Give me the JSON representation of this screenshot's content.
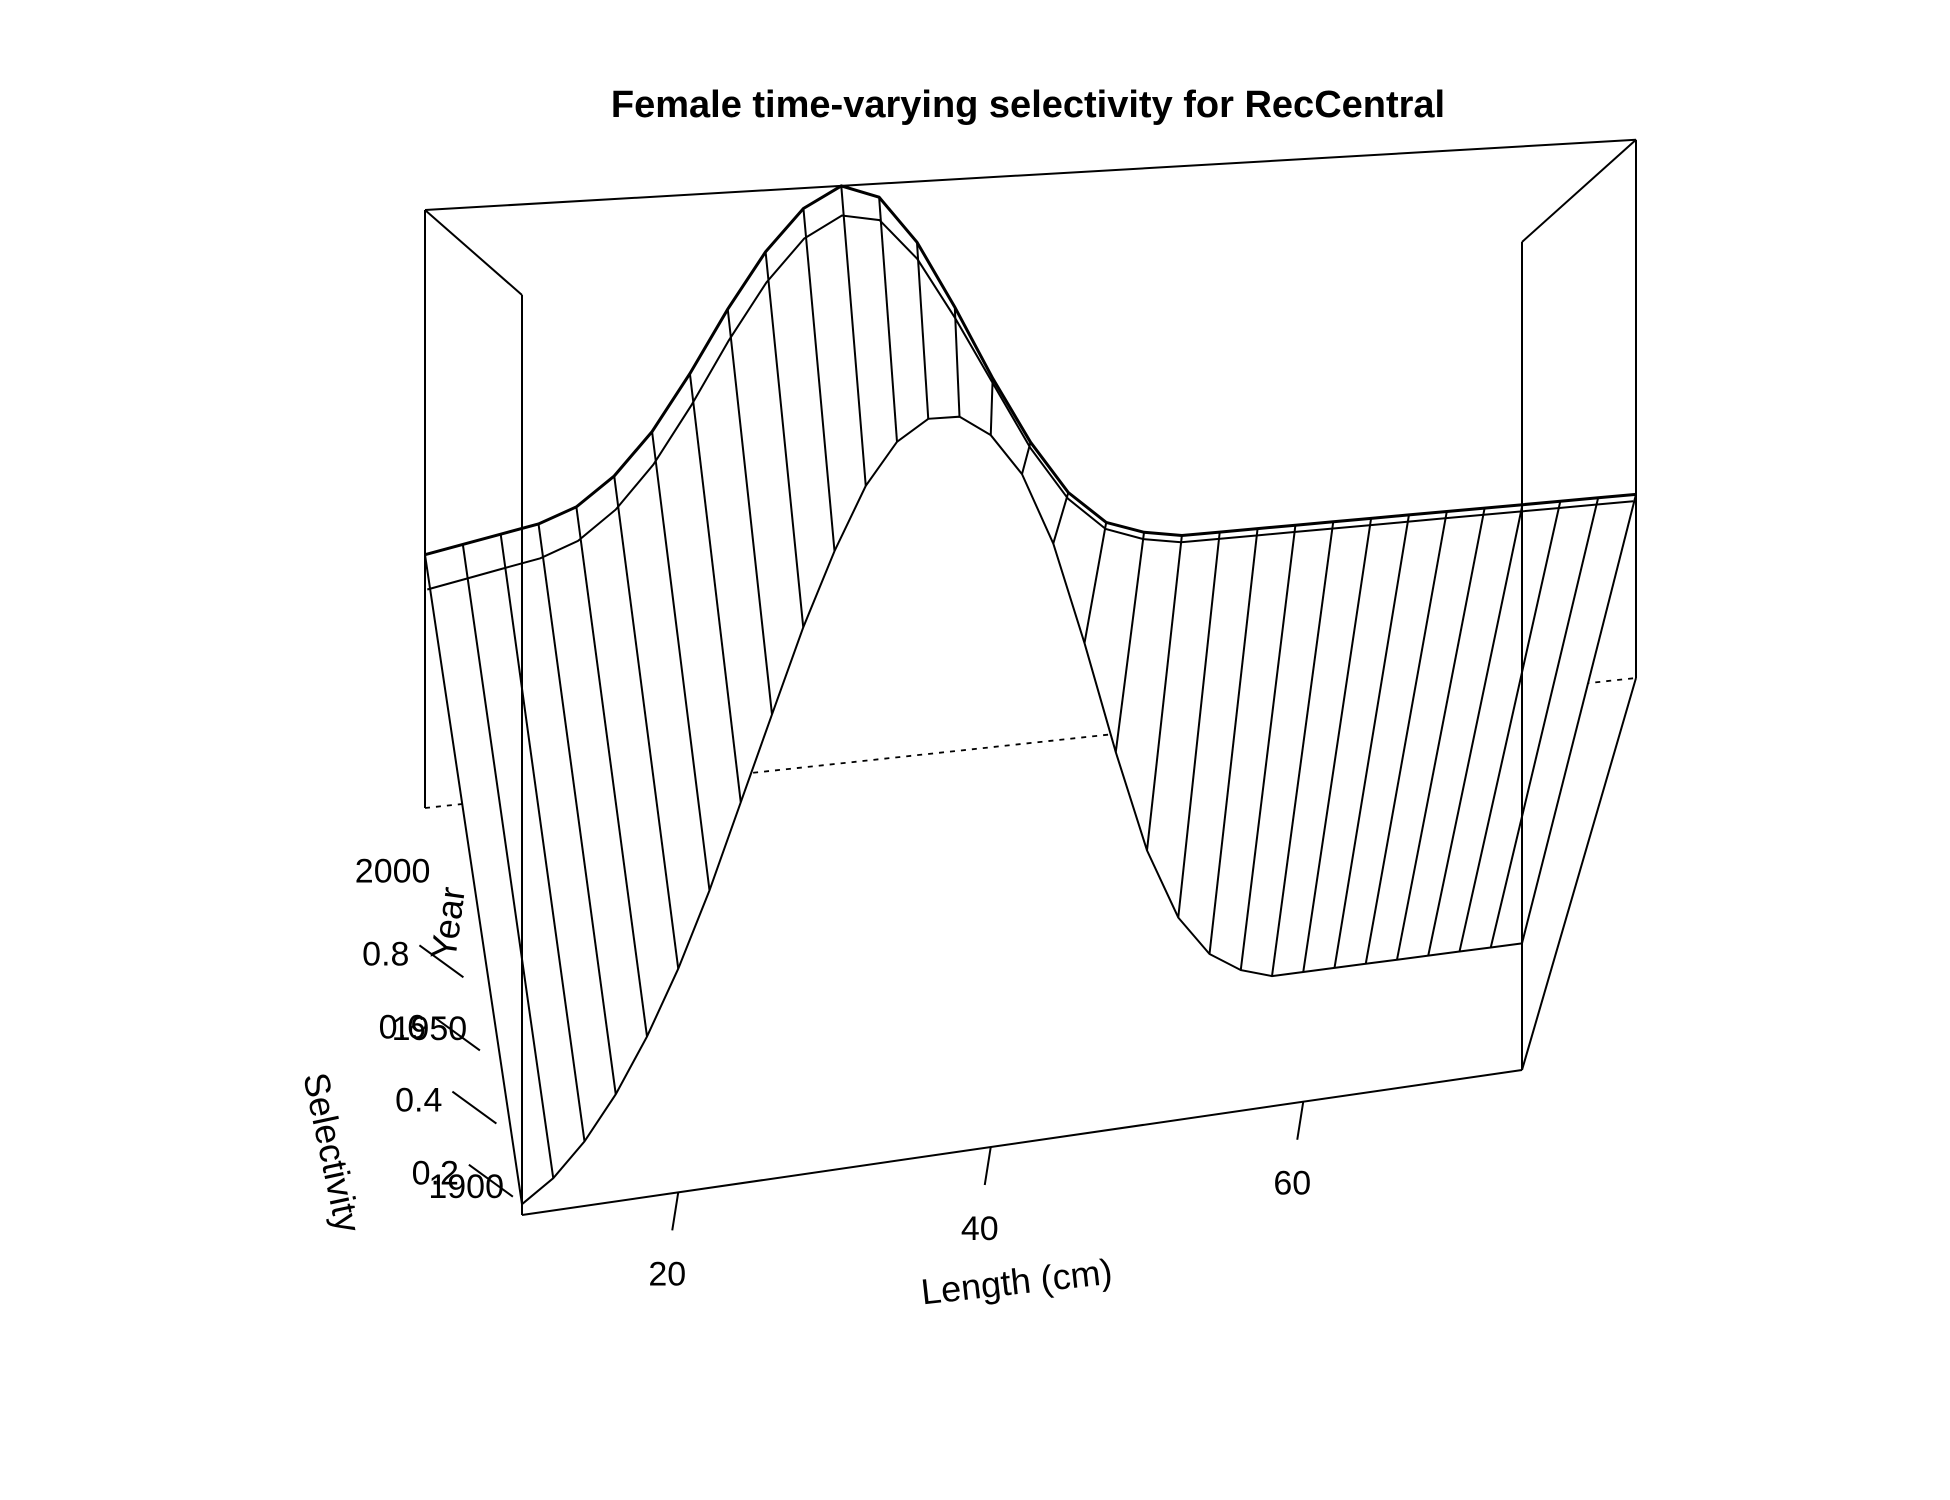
{
  "chart_data": {
    "type": "surface",
    "title": "Female time-varying selectivity for RecCentral",
    "xlabel": "Length (cm)",
    "ylabel": "Year",
    "zlabel": "Selectivity",
    "x_ticks": [
      "20",
      "40",
      "60"
    ],
    "y_ticks": [
      "1900",
      "1950",
      "2000"
    ],
    "z_ticks": [
      "0.2",
      "0.4",
      "0.6",
      "0.8"
    ],
    "xlim": [
      10,
      74
    ],
    "ylim": [
      1892,
      2021
    ],
    "zlim": [
      0.15,
      1.0
    ],
    "grid": false,
    "year_early": 1892,
    "year_late": 2021,
    "length_bins": [
      10,
      12,
      14,
      16,
      18,
      20,
      22,
      24,
      26,
      28,
      30,
      32,
      34,
      36,
      38,
      40,
      42,
      44,
      46,
      48,
      50,
      52,
      54,
      56,
      58,
      60,
      62,
      64,
      66,
      68,
      70,
      72,
      74
    ],
    "selectivity_early": [
      0.16,
      0.18,
      0.21,
      0.25,
      0.3,
      0.36,
      0.43,
      0.51,
      0.59,
      0.67,
      0.74,
      0.8,
      0.84,
      0.86,
      0.86,
      0.84,
      0.8,
      0.73,
      0.63,
      0.52,
      0.42,
      0.35,
      0.31,
      0.29,
      0.28,
      0.28,
      0.28,
      0.28,
      0.28,
      0.28,
      0.28,
      0.28,
      0.28
    ],
    "selectivity_late": [
      0.51,
      0.52,
      0.53,
      0.54,
      0.56,
      0.6,
      0.66,
      0.74,
      0.83,
      0.91,
      0.97,
      1.0,
      0.98,
      0.91,
      0.81,
      0.7,
      0.6,
      0.52,
      0.47,
      0.45,
      0.44,
      0.44,
      0.44,
      0.44,
      0.44,
      0.44,
      0.44,
      0.44,
      0.44,
      0.44,
      0.44,
      0.44,
      0.44
    ],
    "selectivity_late_secondary": [
      0.47,
      0.48,
      0.49,
      0.5,
      0.52,
      0.56,
      0.62,
      0.7,
      0.79,
      0.87,
      0.93,
      0.96,
      0.95,
      0.89,
      0.8,
      0.7,
      0.6,
      0.52,
      0.47,
      0.45,
      0.44,
      0.44,
      0.44,
      0.44,
      0.44,
      0.44,
      0.44,
      0.44,
      0.44,
      0.44,
      0.44,
      0.44,
      0.44
    ]
  }
}
